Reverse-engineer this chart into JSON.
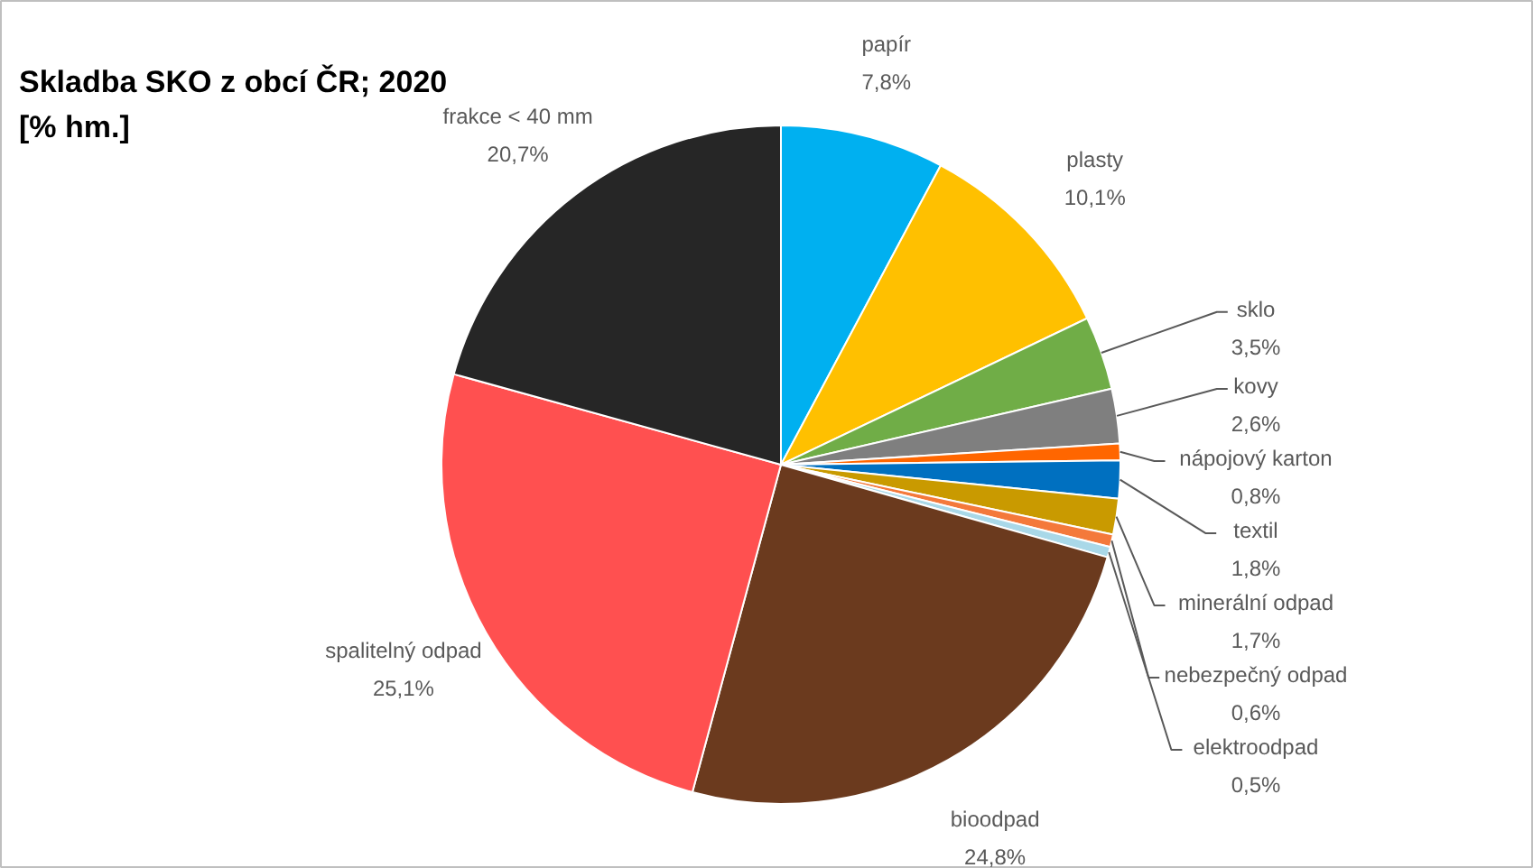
{
  "chart_data": {
    "type": "pie",
    "title": "Skladba SKO z obcí ČR; 2020",
    "subtitle": "[% hm.]",
    "categories": [
      "papír",
      "plasty",
      "sklo",
      "kovy",
      "nápojový karton",
      "textil",
      "minerální odpad",
      "nebezpečný odpad",
      "elektroodpad",
      "bioodpad",
      "spalitelný odpad",
      "frakce < 40 mm"
    ],
    "values": [
      7.8,
      10.1,
      3.5,
      2.6,
      0.8,
      1.8,
      1.7,
      0.6,
      0.5,
      24.8,
      25.1,
      20.7
    ],
    "colors": [
      "#00b0f0",
      "#ffc000",
      "#70ad47",
      "#7f7f7f",
      "#ff6600",
      "#0070c0",
      "#c99a00",
      "#f4793b",
      "#a9d8e8",
      "#6b3a1e",
      "#ff5050",
      "#262626"
    ],
    "value_labels": [
      "7,8%",
      "10,1%",
      "3,5%",
      "2,6%",
      "0,8%",
      "1,8%",
      "1,7%",
      "0,6%",
      "0,5%",
      "24,8%",
      "25,1%",
      "20,7%"
    ]
  }
}
